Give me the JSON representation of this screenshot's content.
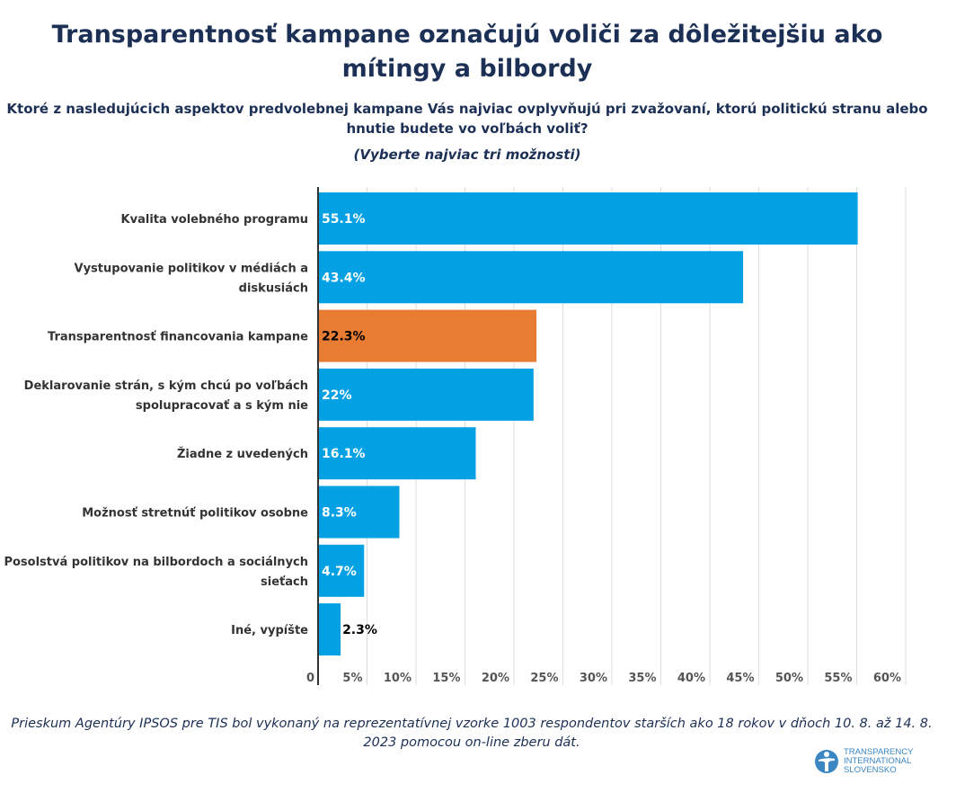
{
  "title": "Transparentnosť kampane označujú voliči za dôležitejšiu ako mítingy a bilbordy",
  "subtitle": "Ktoré z nasledujúcich aspektov predvolebnej kampane Vás najviac ovplyvňujú pri zvažovaní, ktorú politickú stranu alebo hnutie budete vo voľbách voliť?",
  "note": "(Vyberte najviac tri možnosti)",
  "footer": "Prieskum Agentúry IPSOS pre TIS bol vykonaný na reprezentatívnej vzorke 1003 respondentov starších ako 18 rokov v dňoch 10. 8. až 14. 8. 2023 pomocou on-line zberu dát.",
  "logo": {
    "name": "TRANSPARENCY INTERNATIONAL SLOVENSKO",
    "lines": [
      "TRANSPARENCY",
      "INTERNATIONAL",
      "SLOVENSKO"
    ]
  },
  "colors": {
    "bar": "#03a0e3",
    "highlight": "#e97c33",
    "text": "#1c2f55"
  },
  "chart_data": {
    "type": "bar",
    "orientation": "horizontal",
    "categories": [
      [
        "Kvalita volebného programu"
      ],
      [
        "Vystupovanie politikov v médiách a",
        "diskusiách"
      ],
      [
        "Transparentnosť financovania kampane"
      ],
      [
        "Deklarovanie strán, s kým chcú po voľbách",
        "spolupracovať a s kým nie"
      ],
      [
        "Žiadne z uvedených"
      ],
      [
        "Možnosť stretnúť politikov osobne"
      ],
      [
        "Posolstvá politikov na bilbordoch a sociálnych",
        "sieťach"
      ],
      [
        "Iné, vypíšte"
      ]
    ],
    "values": [
      55.1,
      43.4,
      22.3,
      22,
      16.1,
      8.3,
      4.7,
      2.3
    ],
    "data_labels": [
      "55.1%",
      "43.4%",
      "22.3%",
      "22%",
      "16.1%",
      "8.3%",
      "4.7%",
      "2.3%"
    ],
    "highlighted_index": 2,
    "xlim": [
      0,
      60
    ],
    "xticks": [
      0,
      5,
      10,
      15,
      20,
      25,
      30,
      35,
      40,
      45,
      50,
      55,
      60
    ],
    "xtick_labels": [
      "0",
      "5%",
      "10%",
      "15%",
      "20%",
      "25%",
      "30%",
      "35%",
      "40%",
      "45%",
      "50%",
      "55%",
      "60%"
    ],
    "grid": true,
    "legend": "none"
  }
}
